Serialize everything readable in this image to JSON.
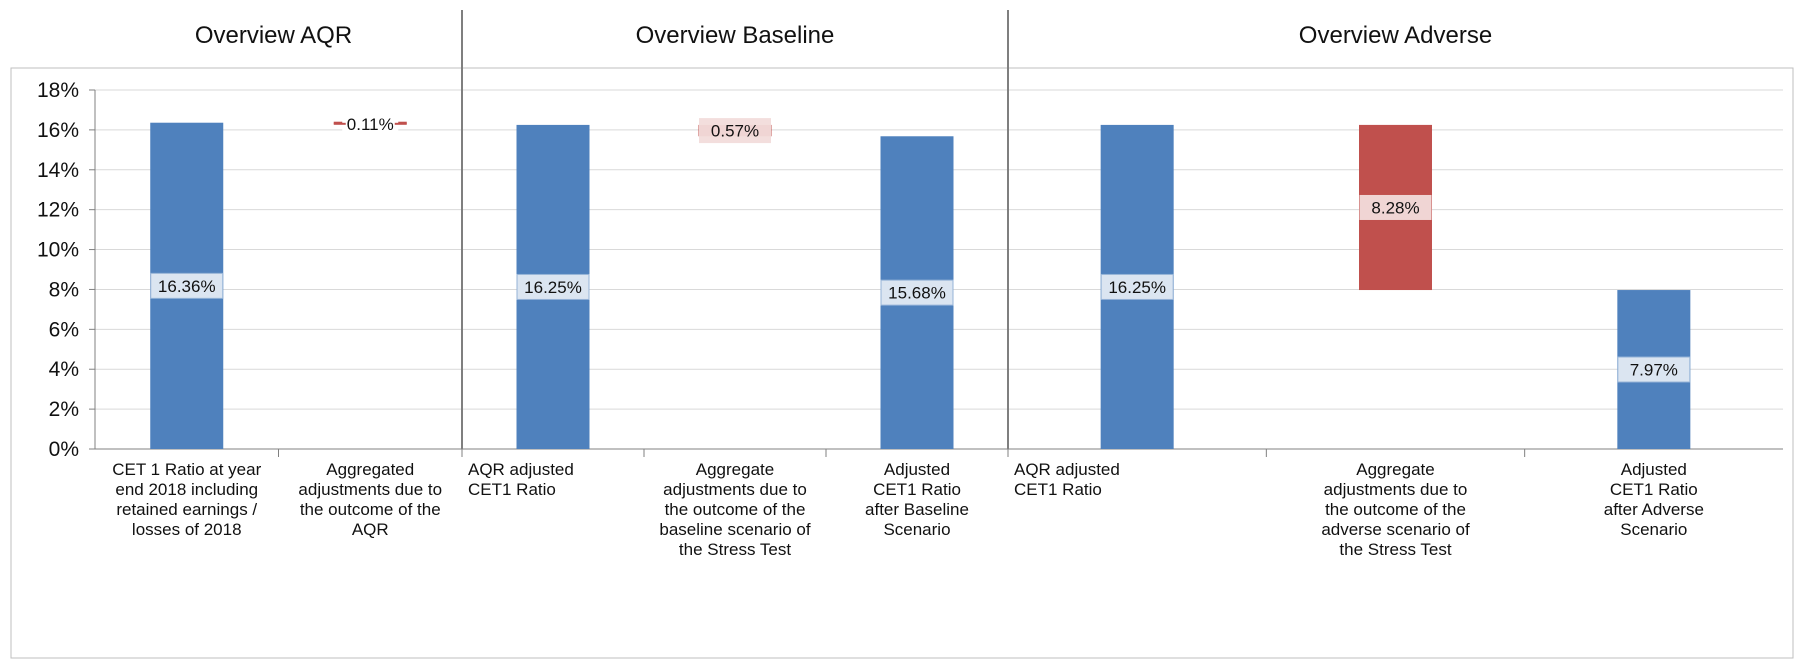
{
  "colors": {
    "increase_bar": "#4f81bd",
    "decrease_bar": "#c0504d",
    "label_box_blue": "#dbe5f1",
    "label_box_red": "#f2dcdb",
    "grid": "#d9d9d9",
    "divider": "#7f7f7f"
  },
  "chart_data": {
    "type": "bar",
    "variant": "waterfall",
    "ylim": [
      0,
      18
    ],
    "yticks": [
      0,
      2,
      4,
      6,
      8,
      10,
      12,
      14,
      16,
      18
    ],
    "ytick_labels": [
      "0%",
      "2%",
      "4%",
      "6%",
      "8%",
      "10%",
      "12%",
      "14%",
      "16%",
      "18%"
    ],
    "grid": true,
    "sections": [
      {
        "title": "Overview AQR",
        "bars": [
          {
            "label_lines": [
              "CET 1 Ratio at year",
              "end 2018 including",
              "retained earnings /",
              "losses of 2018"
            ],
            "kind": "total",
            "start": 0,
            "end": 16.36,
            "value_label": "16.36%"
          },
          {
            "label_lines": [
              "Aggregated",
              "adjustments due to",
              "the outcome of the",
              "AQR"
            ],
            "kind": "decrease",
            "start": 16.25,
            "end": 16.36,
            "value_label": "0.11%"
          }
        ]
      },
      {
        "title": "Overview Baseline",
        "bars": [
          {
            "label_lines": [
              "AQR adjusted",
              "CET1 Ratio"
            ],
            "kind": "total",
            "start": 0,
            "end": 16.25,
            "value_label": "16.25%"
          },
          {
            "label_lines": [
              "Aggregate",
              "adjustments due to",
              "the outcome of the",
              "baseline scenario of",
              "the Stress Test"
            ],
            "kind": "decrease",
            "start": 15.68,
            "end": 16.25,
            "value_label": "0.57%"
          },
          {
            "label_lines": [
              "Adjusted",
              "CET1 Ratio",
              "after Baseline",
              "Scenario"
            ],
            "kind": "total",
            "start": 0,
            "end": 15.68,
            "value_label": "15.68%"
          }
        ]
      },
      {
        "title": "Overview Adverse",
        "bars": [
          {
            "label_lines": [
              "AQR adjusted",
              "CET1 Ratio"
            ],
            "kind": "total",
            "start": 0,
            "end": 16.25,
            "value_label": "16.25%"
          },
          {
            "label_lines": [
              "Aggregate",
              "adjustments due to",
              "the outcome of the",
              "adverse scenario of",
              "the Stress Test"
            ],
            "kind": "decrease",
            "start": 7.97,
            "end": 16.25,
            "value_label": "8.28%"
          },
          {
            "label_lines": [
              "Adjusted",
              "CET1 Ratio",
              "after Adverse",
              "Scenario"
            ],
            "kind": "total",
            "start": 0,
            "end": 7.97,
            "value_label": "7.97%"
          }
        ]
      }
    ]
  }
}
